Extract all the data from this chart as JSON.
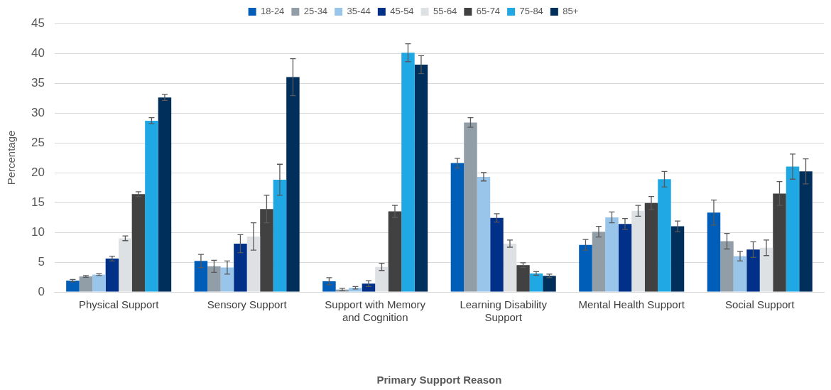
{
  "chart_data": {
    "type": "bar",
    "xlabel": "Primary Support Reason",
    "ylabel": "Percentage",
    "categories": [
      "Physical Support",
      "Sensory Support",
      "Support with Memory and Cognition",
      "Learning Disability Support",
      "Mental Health Support",
      "Social Support"
    ],
    "series": [
      {
        "name": "18-24",
        "color": "#005eb8",
        "values": [
          1.9,
          5.2,
          1.8,
          21.6,
          7.9,
          13.3
        ],
        "errors": [
          0.2,
          1.1,
          0.6,
          0.8,
          0.9,
          2.1
        ]
      },
      {
        "name": "25-34",
        "color": "#919ea8",
        "values": [
          2.6,
          4.3,
          0.4,
          28.4,
          10.1,
          8.5
        ],
        "errors": [
          0.15,
          1.0,
          0.2,
          0.8,
          0.9,
          1.3
        ]
      },
      {
        "name": "35-44",
        "color": "#9ac5ea",
        "values": [
          2.9,
          4.1,
          0.7,
          19.3,
          12.5,
          6.0
        ],
        "errors": [
          0.15,
          1.1,
          0.2,
          0.7,
          0.9,
          0.8
        ]
      },
      {
        "name": "45-54",
        "color": "#003087",
        "values": [
          5.6,
          8.1,
          1.4,
          12.4,
          11.4,
          7.1
        ],
        "errors": [
          0.4,
          1.5,
          0.5,
          0.7,
          0.9,
          1.3
        ]
      },
      {
        "name": "55-64",
        "color": "#dde1e4",
        "values": [
          9.0,
          9.3,
          4.2,
          8.1,
          13.6,
          7.4
        ],
        "errors": [
          0.4,
          2.3,
          0.6,
          0.6,
          0.9,
          1.3
        ]
      },
      {
        "name": "65-74",
        "color": "#414141",
        "values": [
          16.4,
          13.9,
          13.5,
          4.5,
          14.9,
          16.5
        ],
        "errors": [
          0.4,
          2.3,
          1.0,
          0.4,
          1.1,
          2.0
        ]
      },
      {
        "name": "75-84",
        "color": "#1fa8e4",
        "values": [
          28.7,
          18.8,
          40.1,
          3.1,
          18.9,
          21.0
        ],
        "errors": [
          0.5,
          2.6,
          1.5,
          0.3,
          1.3,
          2.1
        ]
      },
      {
        "name": "85+",
        "color": "#002f5c",
        "values": [
          32.6,
          36.0,
          38.1,
          2.7,
          11.0,
          20.2
        ],
        "errors": [
          0.5,
          3.1,
          1.5,
          0.3,
          0.9,
          2.1
        ]
      }
    ],
    "ylim": [
      0,
      45
    ],
    "yticks": [
      0,
      5,
      10,
      15,
      20,
      25,
      30,
      35,
      40,
      45
    ],
    "grid": "y",
    "legend": "top"
  }
}
